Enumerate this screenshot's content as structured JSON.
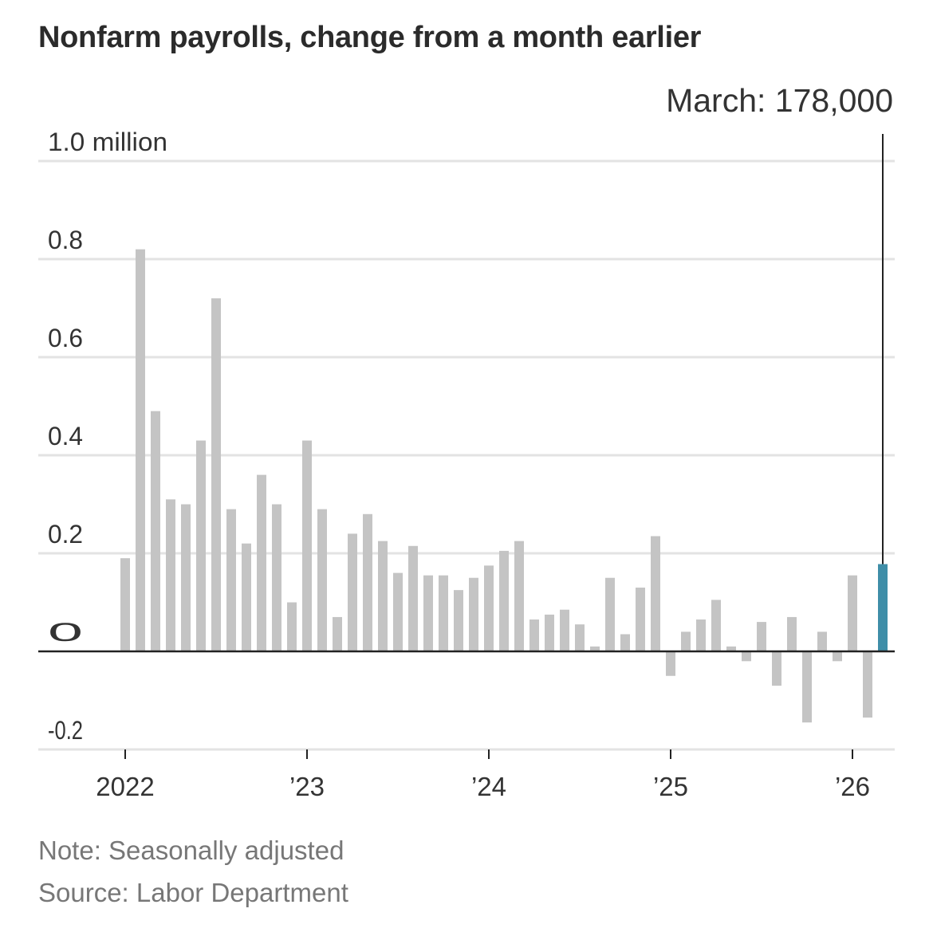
{
  "title": "Nonfarm payrolls, change from a month earlier",
  "note": "Note: Seasonally adjusted",
  "source": "Source: Labor Department",
  "colors": {
    "bar": "#c4c4c4",
    "highlight": "#3f8ea8",
    "grid": "#e3e3e3",
    "axis": "#222222",
    "text": "#333333"
  },
  "chart_data": {
    "type": "bar",
    "unit": "million",
    "ylim": [
      -0.2,
      1.0
    ],
    "yticks": [
      {
        "value": 1.0,
        "label": "1.0 million"
      },
      {
        "value": 0.8,
        "label": "0.8"
      },
      {
        "value": 0.6,
        "label": "0.6"
      },
      {
        "value": 0.4,
        "label": "0.4"
      },
      {
        "value": 0.2,
        "label": "0.2"
      },
      {
        "value": 0,
        "label": "0"
      },
      {
        "value": -0.2,
        "label": "-0.2"
      }
    ],
    "xticks": [
      {
        "index": 0,
        "label": "2022"
      },
      {
        "index": 12,
        "label": "’23"
      },
      {
        "index": 24,
        "label": "’24"
      },
      {
        "index": 36,
        "label": "’25"
      },
      {
        "index": 48,
        "label": "’26"
      }
    ],
    "start": "2022-01",
    "values": [
      0.19,
      0.82,
      0.49,
      0.31,
      0.3,
      0.43,
      0.72,
      0.29,
      0.22,
      0.36,
      0.3,
      0.1,
      0.43,
      0.29,
      0.07,
      0.24,
      0.28,
      0.225,
      0.16,
      0.215,
      0.155,
      0.155,
      0.125,
      0.15,
      0.175,
      0.205,
      0.225,
      0.065,
      0.075,
      0.085,
      0.055,
      0.01,
      0.15,
      0.035,
      0.13,
      0.235,
      -0.05,
      0.04,
      0.065,
      0.105,
      0.01,
      -0.02,
      0.06,
      -0.07,
      0.07,
      -0.145,
      0.04,
      -0.02,
      0.155,
      -0.135,
      0.178
    ],
    "highlight_index": 50,
    "annotation": "March: 178,000"
  }
}
